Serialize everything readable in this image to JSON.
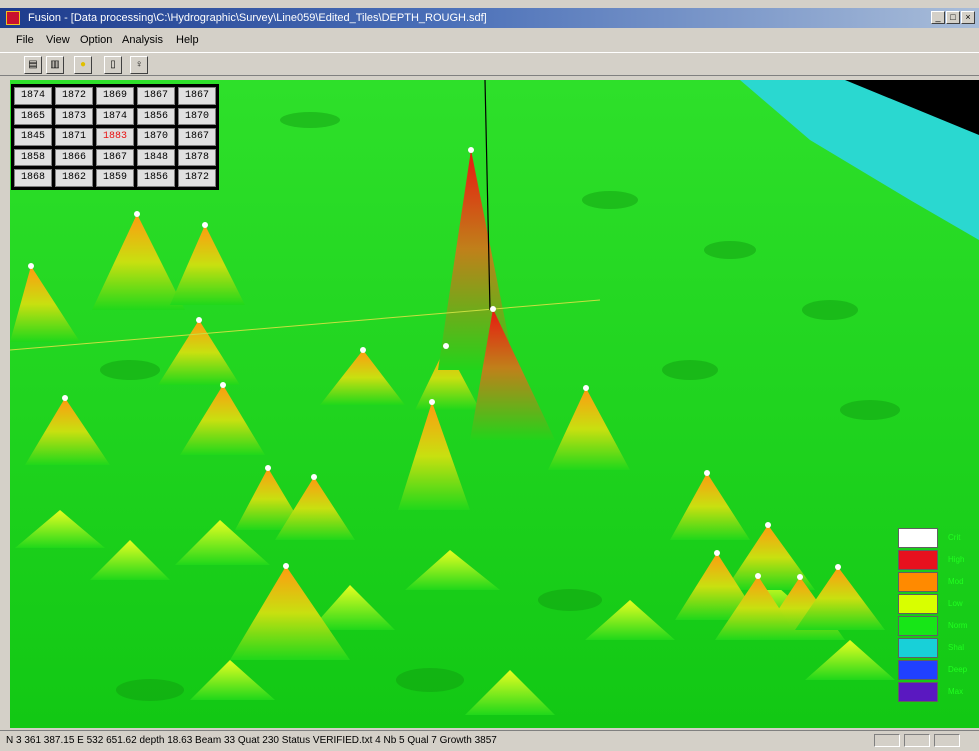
{
  "window": {
    "title": "Fusion - [Data processing\\C:\\Hydrographic\\Survey\\Line059\\Edited_Tiles\\DEPTH_ROUGH.sdf]",
    "controls": [
      "minimize",
      "maximize",
      "close"
    ]
  },
  "menu": [
    "File",
    "View",
    "Option",
    "Analysis",
    "Help"
  ],
  "toolbar": [
    "open-icon",
    "grid-icon",
    "light-icon",
    "page-icon",
    "pin-icon"
  ],
  "depth_grid": {
    "rows": [
      [
        "1874",
        "1872",
        "1869",
        "1867",
        "1867"
      ],
      [
        "1865",
        "1873",
        "1874",
        "1856",
        "1870"
      ],
      [
        "1845",
        "1871",
        "1883",
        "1870",
        "1867"
      ],
      [
        "1858",
        "1866",
        "1867",
        "1848",
        "1878"
      ],
      [
        "1868",
        "1862",
        "1859",
        "1856",
        "1872"
      ]
    ],
    "selected": "1883"
  },
  "legend": {
    "colors": [
      "#ffffff",
      "#e8101e",
      "#ff8a00",
      "#d8ff00",
      "#17e617",
      "#18d0d8",
      "#2040ff",
      "#5a18c0"
    ],
    "labels": [
      "Crit",
      "High",
      "Mod",
      "Low",
      "Norm",
      "Shal",
      "Deep",
      "Max"
    ]
  },
  "status": {
    "text": "N 3 361 387.15  E 532 651.62  depth 18.63  Beam 33  Quat 230 Status VERIFIED.txt  4 Nb  5 Qual  7 Growth  3857"
  }
}
